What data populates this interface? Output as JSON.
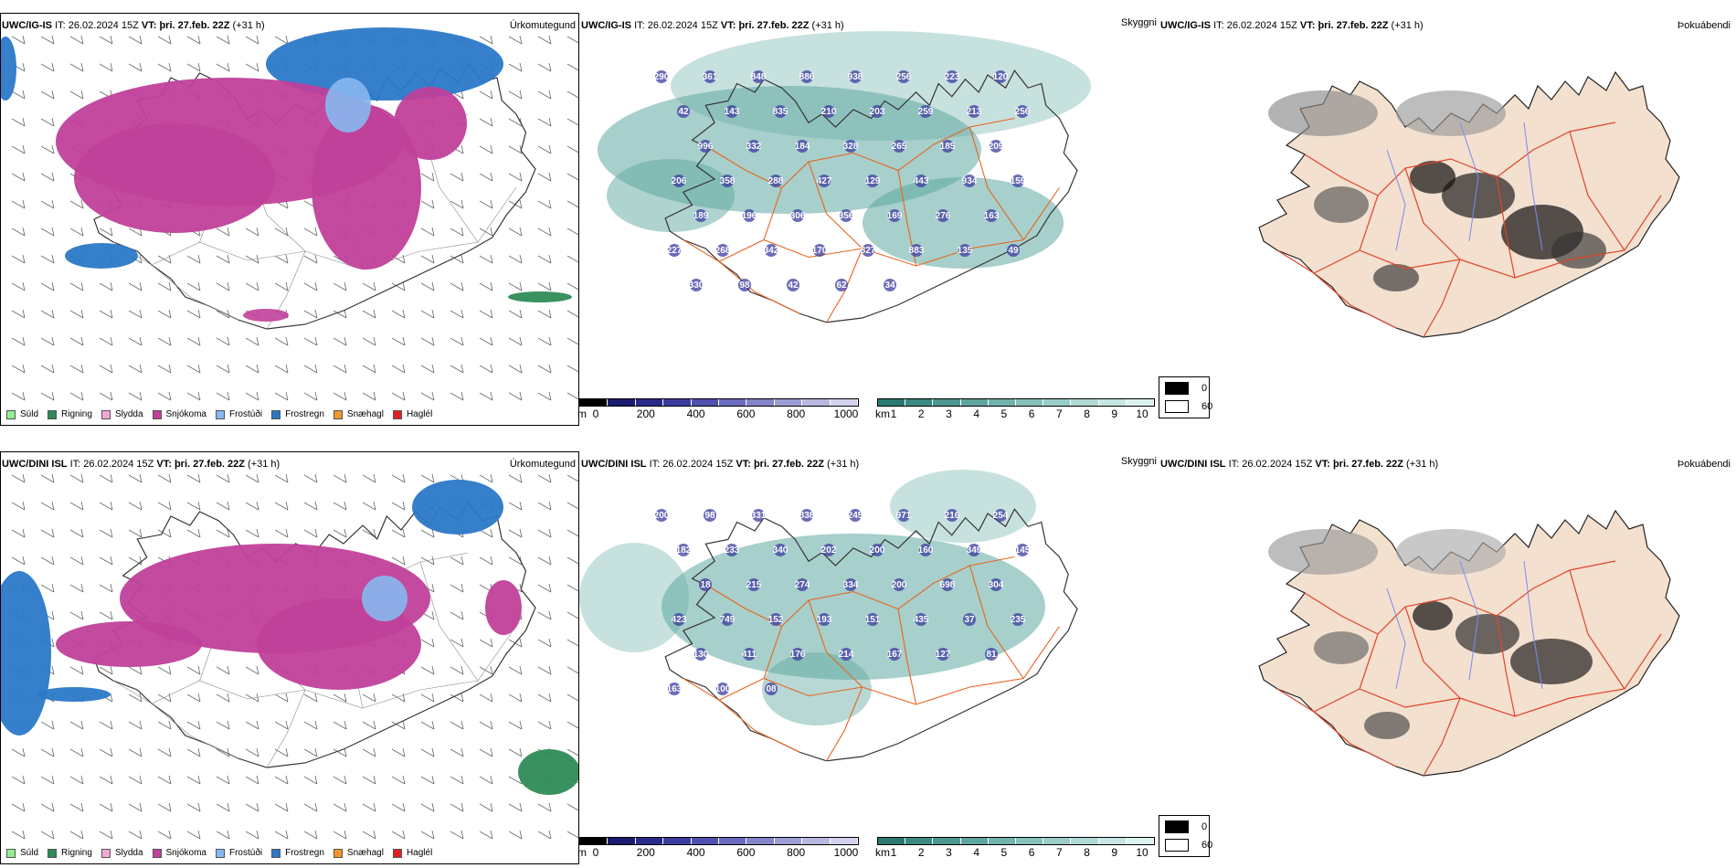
{
  "rows": [
    {
      "model": "UWC/IG-IS",
      "it_label": "IT:",
      "it_value": "26.02.2024 15Z",
      "vt_label": "VT:",
      "vt_value": "þri. 27.feb. 22Z",
      "lead": "(+31 h)",
      "precip_var": "Úrkomutegund",
      "cloud_var": "Skyggni",
      "fog_var": "Þokuábendi",
      "cloud_labels": [
        "290",
        "361",
        "848",
        "886",
        "938",
        "256",
        "223",
        "120",
        "42",
        "143",
        "835",
        "210",
        "203",
        "259",
        "213",
        "256",
        "996",
        "332",
        "184",
        "328",
        "265",
        "185",
        "209",
        "206",
        "358",
        "288",
        "427",
        "129",
        "443",
        "934",
        "159",
        "189",
        "196",
        "306",
        "356",
        "169",
        "276",
        "163",
        "227",
        "268",
        "342",
        "170",
        "827",
        "883",
        "135",
        "49",
        "330",
        "98",
        "42",
        "62",
        "34"
      ]
    },
    {
      "model": "UWC/DINI ISL",
      "it_label": "IT:",
      "it_value": "26.02.2024 15Z",
      "vt_label": "VT:",
      "vt_value": "þri. 27.feb. 22Z",
      "lead": "(+31 h)",
      "precip_var": "Úrkomutegund",
      "cloud_var": "Skyggni",
      "fog_var": "Þokuábendi",
      "cloud_labels": [
        "200",
        "98",
        "331",
        "838",
        "245",
        "971",
        "216",
        "254",
        "182",
        "233",
        "340",
        "202",
        "200",
        "160",
        "349",
        "145",
        "18",
        "215",
        "274",
        "334",
        "200",
        "698",
        "304",
        "423",
        "749",
        "152",
        "193",
        "151",
        "435",
        "37",
        "235",
        "130",
        "411",
        "176",
        "214",
        "167",
        "127",
        "81",
        "163",
        "100",
        "08"
      ]
    }
  ],
  "precip_legend": [
    {
      "label": "Súld",
      "color": "#90ee90"
    },
    {
      "label": "Rigning",
      "color": "#2e8b57"
    },
    {
      "label": "Slydda",
      "color": "#f4a6d7"
    },
    {
      "label": "Snjókoma",
      "color": "#c0409a"
    },
    {
      "label": "Frostúði",
      "color": "#87b8f0"
    },
    {
      "label": "Frostregn",
      "color": "#2a78c8"
    },
    {
      "label": "Snæhagl",
      "color": "#f0962a"
    },
    {
      "label": "Haglél",
      "color": "#e02020"
    }
  ],
  "cloud_base_bar": {
    "unit": "m",
    "ticks": [
      "0",
      "200",
      "400",
      "600",
      "800",
      "1000"
    ],
    "colors": [
      "#000000",
      "#1a1a6e",
      "#2a2a8a",
      "#3c3ca0",
      "#5050b0",
      "#6a6abe",
      "#8484ca",
      "#9e9ed6",
      "#b8b8e2",
      "#d2d2ee"
    ]
  },
  "visibility_bar": {
    "unit": "km",
    "ticks": [
      "1",
      "2",
      "3",
      "4",
      "5",
      "6",
      "7",
      "8",
      "9",
      "10"
    ],
    "colors": [
      "#2a7a72",
      "#3a8a82",
      "#4c9890",
      "#5ea69e",
      "#72b4ac",
      "#86c2ba",
      "#9acec8",
      "#b0dad4",
      "#c6e6e2",
      "#dcf2ee"
    ]
  },
  "fog_legend": [
    {
      "label": "0",
      "color": "#000000"
    },
    {
      "label": "60",
      "color": "#ffffff"
    }
  ],
  "colors": {
    "snow": "#c0409a",
    "frz_rain": "#2a78c8",
    "frz_drizzle": "#87b8f0",
    "rain": "#2e8b57",
    "teal": "#5fa8a0",
    "land": "#f3e0cf",
    "roads": "#e8641e"
  }
}
